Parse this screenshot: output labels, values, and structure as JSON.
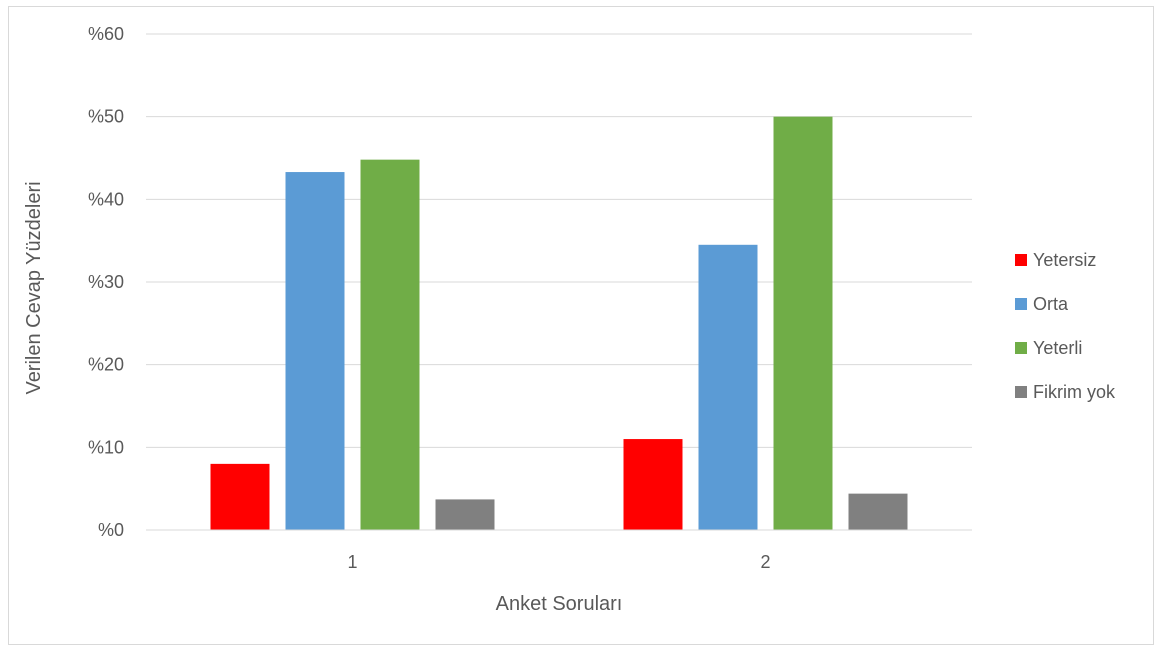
{
  "chart_data": {
    "type": "bar",
    "title": "",
    "xlabel": "Anket Soruları",
    "ylabel": "Verilen Cevap Yüzdeleri",
    "categories": [
      "1",
      "2"
    ],
    "series": [
      {
        "name": "Yetersiz",
        "color": "#ff0000",
        "values": [
          8,
          11
        ]
      },
      {
        "name": "Orta",
        "color": "#5b9bd5",
        "values": [
          43.3,
          34.5
        ]
      },
      {
        "name": "Yeterli",
        "color": "#70ad47",
        "values": [
          44.8,
          50
        ]
      },
      {
        "name": "Fikrim yok",
        "color": "#808080",
        "values": [
          3.7,
          4.4
        ]
      }
    ],
    "ylim": [
      0,
      60
    ],
    "yticks": [
      "%0",
      "%10",
      "%20",
      "%30",
      "%40",
      "%50",
      "%60"
    ],
    "grid": true,
    "legend_position": "right"
  }
}
